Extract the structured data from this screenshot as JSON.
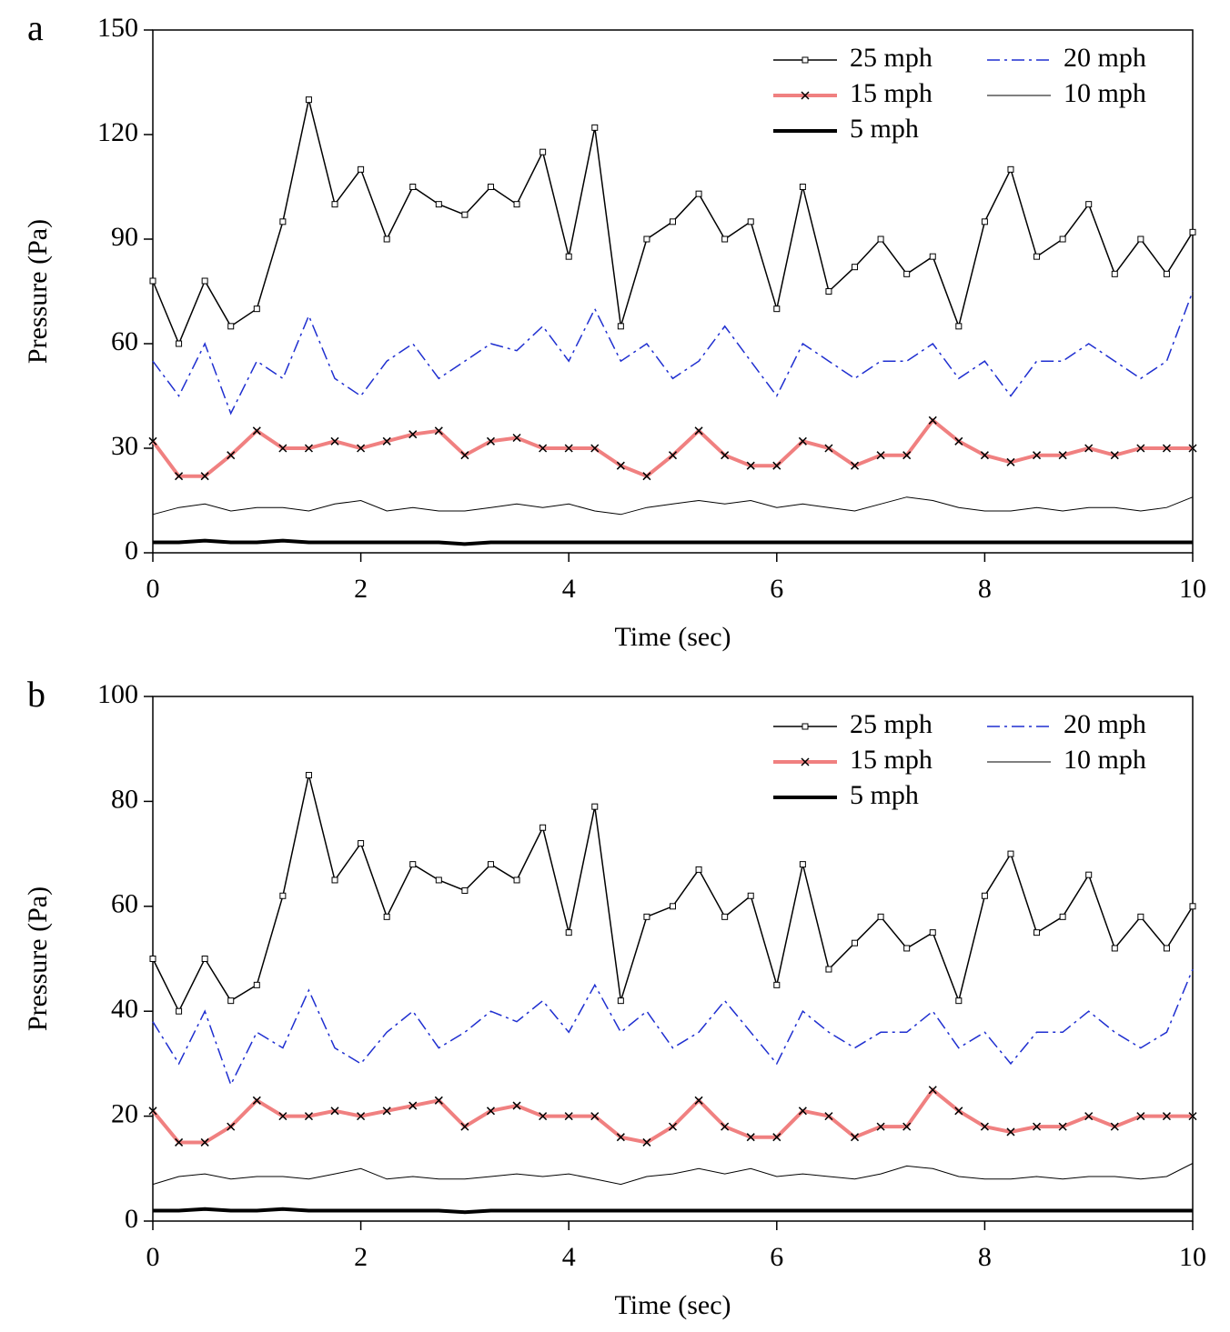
{
  "chart_data": [
    {
      "type": "line",
      "panel": "a",
      "x_label": "Time (sec)",
      "y_label": "Pressure (Pa)",
      "x": [
        0,
        0.25,
        0.5,
        0.75,
        1,
        1.25,
        1.5,
        1.75,
        2,
        2.25,
        2.5,
        2.75,
        3,
        3.25,
        3.5,
        3.75,
        4,
        4.25,
        4.5,
        4.75,
        5,
        5.25,
        5.5,
        5.75,
        6,
        6.25,
        6.5,
        6.75,
        7,
        7.25,
        7.5,
        7.75,
        8,
        8.25,
        8.5,
        8.75,
        9,
        9.25,
        9.5,
        9.75,
        10
      ],
      "xlim": [
        0,
        10
      ],
      "xticks": [
        0,
        2,
        4,
        6,
        8,
        10
      ],
      "ylim": [
        0,
        150
      ],
      "yticks": [
        0,
        30,
        60,
        90,
        120,
        150
      ],
      "series": [
        {
          "name": "25 mph",
          "color": "#000000",
          "width": 1.5,
          "marker": "square",
          "dash": "none",
          "values": [
            78,
            60,
            78,
            65,
            70,
            95,
            130,
            100,
            110,
            90,
            105,
            100,
            97,
            105,
            100,
            115,
            85,
            122,
            65,
            90,
            95,
            103,
            90,
            95,
            70,
            105,
            75,
            82,
            90,
            80,
            85,
            65,
            95,
            110,
            85,
            90,
            100,
            80,
            90,
            80,
            92
          ]
        },
        {
          "name": "20 mph",
          "color": "#1f2fd0",
          "width": 1.5,
          "marker": "none",
          "dash": "14 5 3 5",
          "values": [
            55,
            45,
            60,
            40,
            55,
            50,
            68,
            50,
            45,
            55,
            60,
            50,
            55,
            60,
            58,
            65,
            55,
            70,
            55,
            60,
            50,
            55,
            65,
            55,
            45,
            60,
            55,
            50,
            55,
            55,
            60,
            50,
            55,
            45,
            55,
            55,
            60,
            55,
            50,
            55,
            75
          ]
        },
        {
          "name": "15 mph",
          "color": "#f08080",
          "width": 4,
          "marker": "x",
          "dash": "none",
          "values": [
            32,
            22,
            22,
            28,
            35,
            30,
            30,
            32,
            30,
            32,
            34,
            35,
            28,
            32,
            33,
            30,
            30,
            30,
            25,
            22,
            28,
            35,
            28,
            25,
            25,
            32,
            30,
            25,
            28,
            28,
            38,
            32,
            28,
            26,
            28,
            28,
            30,
            28,
            30,
            30,
            30
          ]
        },
        {
          "name": "10 mph",
          "color": "#000000",
          "width": 1,
          "marker": "none",
          "dash": "none",
          "values": [
            11,
            13,
            14,
            12,
            13,
            13,
            12,
            14,
            15,
            12,
            13,
            12,
            12,
            13,
            14,
            13,
            14,
            12,
            11,
            13,
            14,
            15,
            14,
            15,
            13,
            14,
            13,
            12,
            14,
            16,
            15,
            13,
            12,
            12,
            13,
            12,
            13,
            13,
            12,
            13,
            16
          ]
        },
        {
          "name": "5 mph",
          "color": "#000000",
          "width": 4,
          "marker": "none",
          "dash": "none",
          "values": [
            3,
            3,
            3.5,
            3,
            3,
            3.5,
            3,
            3,
            3,
            3,
            3,
            3,
            2.5,
            3,
            3,
            3,
            3,
            3,
            3,
            3,
            3,
            3,
            3,
            3,
            3,
            3,
            3,
            3,
            3,
            3,
            3,
            3,
            3,
            3,
            3,
            3,
            3,
            3,
            3,
            3,
            3
          ]
        }
      ]
    },
    {
      "type": "line",
      "panel": "b",
      "x_label": "Time (sec)",
      "y_label": "Pressure (Pa)",
      "x": [
        0,
        0.25,
        0.5,
        0.75,
        1,
        1.25,
        1.5,
        1.75,
        2,
        2.25,
        2.5,
        2.75,
        3,
        3.25,
        3.5,
        3.75,
        4,
        4.25,
        4.5,
        4.75,
        5,
        5.25,
        5.5,
        5.75,
        6,
        6.25,
        6.5,
        6.75,
        7,
        7.25,
        7.5,
        7.75,
        8,
        8.25,
        8.5,
        8.75,
        9,
        9.25,
        9.5,
        9.75,
        10
      ],
      "xlim": [
        0,
        10
      ],
      "xticks": [
        0,
        2,
        4,
        6,
        8,
        10
      ],
      "ylim": [
        0,
        100
      ],
      "yticks": [
        0,
        20,
        40,
        60,
        80,
        100
      ],
      "series": [
        {
          "name": "25 mph",
          "color": "#000000",
          "width": 1.5,
          "marker": "square",
          "dash": "none",
          "values": [
            50,
            40,
            50,
            42,
            45,
            62,
            85,
            65,
            72,
            58,
            68,
            65,
            63,
            68,
            65,
            75,
            55,
            79,
            42,
            58,
            60,
            67,
            58,
            62,
            45,
            68,
            48,
            53,
            58,
            52,
            55,
            42,
            62,
            70,
            55,
            58,
            66,
            52,
            58,
            52,
            60
          ]
        },
        {
          "name": "20 mph",
          "color": "#1f2fd0",
          "width": 1.5,
          "marker": "none",
          "dash": "14 5 3 5",
          "values": [
            38,
            30,
            40,
            26,
            36,
            33,
            44,
            33,
            30,
            36,
            40,
            33,
            36,
            40,
            38,
            42,
            36,
            45,
            36,
            40,
            33,
            36,
            42,
            36,
            30,
            40,
            36,
            33,
            36,
            36,
            40,
            33,
            36,
            30,
            36,
            36,
            40,
            36,
            33,
            36,
            48
          ]
        },
        {
          "name": "15 mph",
          "color": "#f08080",
          "width": 4,
          "marker": "x",
          "dash": "none",
          "values": [
            21,
            15,
            15,
            18,
            23,
            20,
            20,
            21,
            20,
            21,
            22,
            23,
            18,
            21,
            22,
            20,
            20,
            20,
            16,
            15,
            18,
            23,
            18,
            16,
            16,
            21,
            20,
            16,
            18,
            18,
            25,
            21,
            18,
            17,
            18,
            18,
            20,
            18,
            20,
            20,
            20
          ]
        },
        {
          "name": "10 mph",
          "color": "#000000",
          "width": 1,
          "marker": "none",
          "dash": "none",
          "values": [
            7,
            8.5,
            9,
            8,
            8.5,
            8.5,
            8,
            9,
            10,
            8,
            8.5,
            8,
            8,
            8.5,
            9,
            8.5,
            9,
            8,
            7,
            8.5,
            9,
            10,
            9,
            10,
            8.5,
            9,
            8.5,
            8,
            9,
            10.5,
            10,
            8.5,
            8,
            8,
            8.5,
            8,
            8.5,
            8.5,
            8,
            8.5,
            11
          ]
        },
        {
          "name": "5 mph",
          "color": "#000000",
          "width": 4,
          "marker": "none",
          "dash": "none",
          "values": [
            2,
            2,
            2.3,
            2,
            2,
            2.3,
            2,
            2,
            2,
            2,
            2,
            2,
            1.7,
            2,
            2,
            2,
            2,
            2,
            2,
            2,
            2,
            2,
            2,
            2,
            2,
            2,
            2,
            2,
            2,
            2,
            2,
            2,
            2,
            2,
            2,
            2,
            2,
            2,
            2,
            2,
            2
          ]
        }
      ]
    }
  ]
}
